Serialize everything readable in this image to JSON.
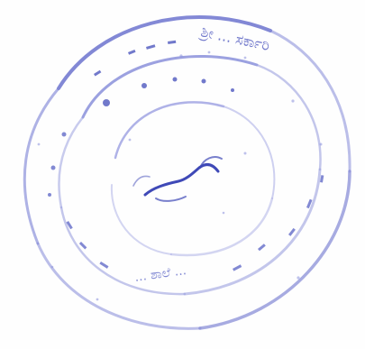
{
  "image": {
    "background": "#ffffff",
    "description_kind": "faded circular stamp"
  },
  "seal": {
    "ink_color": "#5f67c7",
    "ink_color_light": "#9aa0e0",
    "ring_text_top": "ಶ್ರೀ ... ಸರ್ಕಾರಿ",
    "ring_text_bottom": "... ಶಾಲೆ ...",
    "center_mark": "signature"
  }
}
